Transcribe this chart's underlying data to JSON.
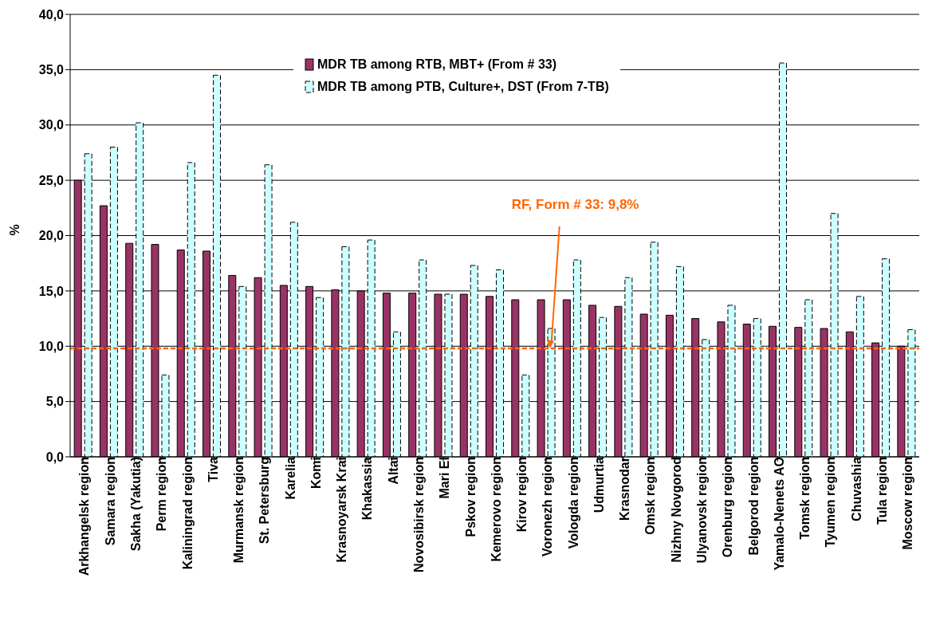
{
  "chart_data": {
    "type": "bar",
    "ylabel": "%",
    "categories": [
      "Arkhangelsk region",
      "Samara region",
      "Sakha (Yakutia)",
      "Perm region",
      "Kaliningrad region",
      "Tiva",
      "Murmansk region",
      "St. Petersburg",
      "Karelia",
      "Komi",
      "Krasnoyarsk Krai",
      "Khakassia",
      "Altai",
      "Novosibirsk region",
      "Mari El",
      "Pskov region",
      "Kemerovo region",
      "Kirov region",
      "Voronezh region",
      "Vologda region",
      "Udmurtia",
      "Krasnodar",
      "Omsk region",
      "Nizhny Novgorod",
      "Ulyanovsk region",
      "Orenburg region",
      "Belgorod region",
      "Yamalo-Nenets AO",
      "Tomsk region",
      "Tyumen region",
      "Chuvashia",
      "Tula region",
      "Moscow region"
    ],
    "series": [
      {
        "name": "MDR TB among RTB, MBT+ (From # 33)",
        "color": "#993366",
        "values": [
          25.0,
          22.7,
          19.3,
          19.2,
          18.7,
          18.6,
          16.4,
          16.2,
          15.5,
          15.4,
          15.1,
          15.0,
          14.8,
          14.8,
          14.7,
          14.7,
          14.5,
          14.2,
          14.2,
          14.2,
          13.7,
          13.6,
          12.9,
          12.8,
          12.5,
          12.2,
          12.0,
          11.8,
          11.7,
          11.6,
          11.3,
          10.3,
          10.0
        ]
      },
      {
        "name": "MDR TB among PTB, Culture+, DST (From 7-TB)",
        "color": "#ccffff",
        "line_style": "dashed",
        "values": [
          27.4,
          28.0,
          30.2,
          7.4,
          26.6,
          34.5,
          15.4,
          26.4,
          21.2,
          14.4,
          19.0,
          19.6,
          11.3,
          17.8,
          14.7,
          17.3,
          16.9,
          7.4,
          11.6,
          17.8,
          12.6,
          16.2,
          19.4,
          17.2,
          10.6,
          13.7,
          12.5,
          35.6,
          14.2,
          22.0,
          14.5,
          17.9,
          11.5
        ]
      }
    ],
    "ylim": [
      0,
      40
    ],
    "yticks": [
      {
        "value": 0,
        "label": "0,0"
      },
      {
        "value": 5,
        "label": "5,0"
      },
      {
        "value": 10,
        "label": "10,0"
      },
      {
        "value": 15,
        "label": "15,0"
      },
      {
        "value": 20,
        "label": "20,0"
      },
      {
        "value": 25,
        "label": "25,0"
      },
      {
        "value": 30,
        "label": "30,0"
      },
      {
        "value": 35,
        "label": "35,0"
      },
      {
        "value": 40,
        "label": "40,0"
      }
    ],
    "grid": "y",
    "legend": "top",
    "ref_lines": [
      {
        "axis": "y",
        "value": 9.8,
        "label": "RF, Form # 33: 9,8%",
        "color": "#ff6600",
        "line_style": "dashed"
      }
    ]
  }
}
